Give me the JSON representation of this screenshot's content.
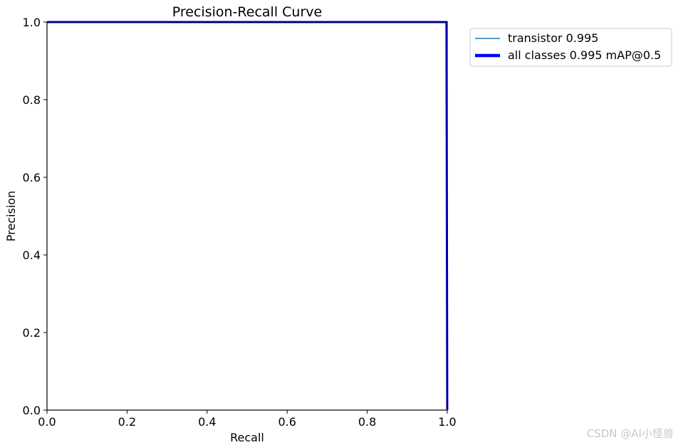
{
  "chart_data": {
    "type": "line",
    "title": "Precision-Recall Curve",
    "xlabel": "Recall",
    "ylabel": "Precision",
    "xlim": [
      0.0,
      1.0
    ],
    "ylim": [
      0.0,
      1.0
    ],
    "x_ticks": [
      "0.0",
      "0.2",
      "0.4",
      "0.6",
      "0.8",
      "1.0"
    ],
    "y_ticks": [
      "0.0",
      "0.2",
      "0.4",
      "0.6",
      "0.8",
      "1.0"
    ],
    "grid": false,
    "legend_position": "outside-right-top",
    "series": [
      {
        "name": "transistor 0.995",
        "color": "#1f77b4",
        "line_width": "thin",
        "x": [
          0.0,
          0.995,
          0.998,
          1.0
        ],
        "y": [
          1.0,
          1.0,
          1.0,
          0.0
        ]
      },
      {
        "name": "all classes 0.995 mAP@0.5",
        "color": "#0000ff",
        "line_width": "thick",
        "x": [
          0.0,
          0.995,
          0.998,
          1.0
        ],
        "y": [
          1.0,
          1.0,
          1.0,
          0.0
        ]
      }
    ]
  },
  "watermark": "CSDN @AI小怪兽"
}
